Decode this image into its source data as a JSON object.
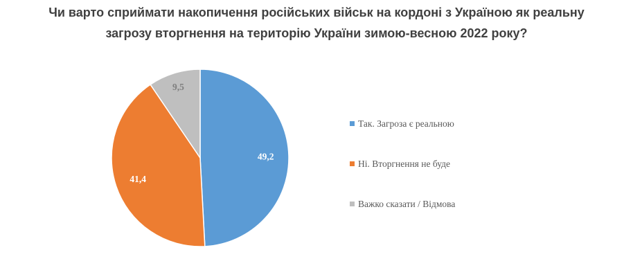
{
  "chart_data": {
    "type": "pie",
    "title_lines": [
      "Чи варто сприймати накопичення російських військ на кордоні з Україною як реальну",
      "загрозу вторгнення на територію України зимою-весною 2022 року?"
    ],
    "categories": [
      "Так. Загроза є реальною",
      "Ні. Вторгнення не буде",
      "Важко сказати / Відмова"
    ],
    "values": [
      49.2,
      41.4,
      9.5
    ],
    "value_labels": [
      "49,2",
      "41,4",
      "9,5"
    ],
    "colors": [
      "#5B9BD5",
      "#ED7D31",
      "#BFBFBF"
    ],
    "label_colors": [
      "#ffffff",
      "#ffffff",
      "#7f7f7f"
    ],
    "legend_position": "right",
    "start": "top, clockwise"
  }
}
